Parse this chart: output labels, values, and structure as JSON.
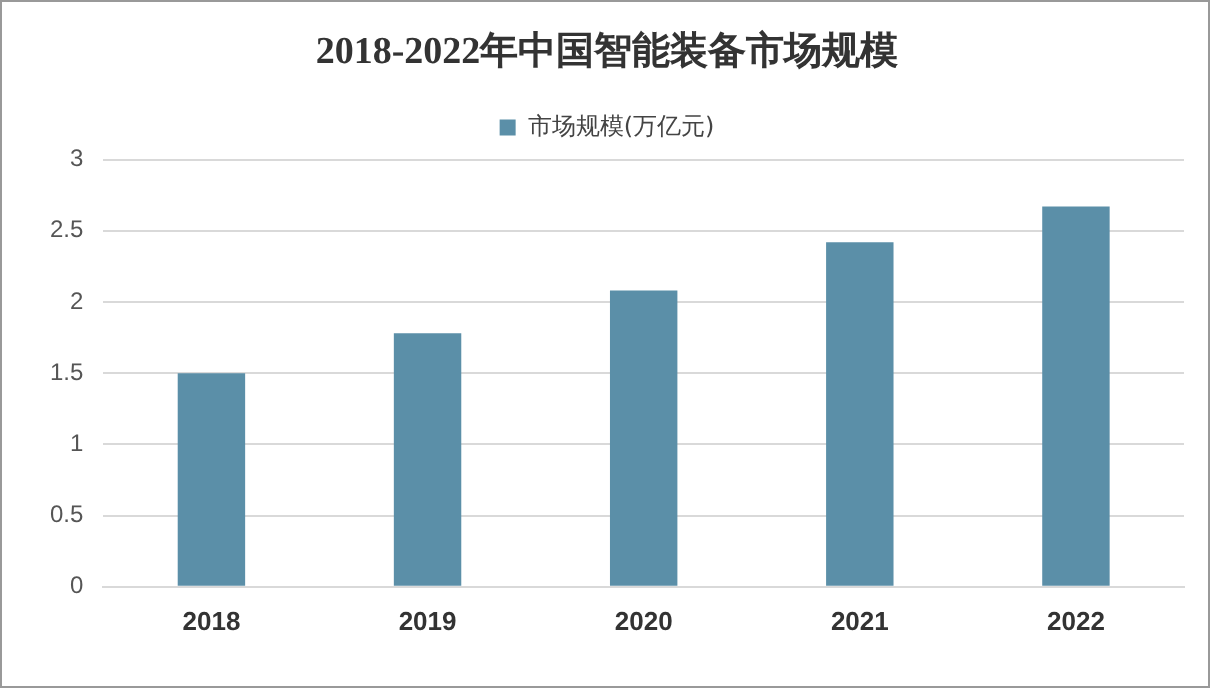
{
  "chart_data": {
    "type": "bar",
    "title": "2018-2022年中国智能装备市场规模",
    "categories": [
      "2018",
      "2019",
      "2020",
      "2021",
      "2022"
    ],
    "series": [
      {
        "name": "市场规模(万亿元)",
        "color": "#5b8fa8",
        "values": [
          1.5,
          1.78,
          2.08,
          2.42,
          2.67
        ]
      }
    ],
    "ylim": [
      0,
      3
    ],
    "yticks": [
      0,
      0.5,
      1,
      1.5,
      2,
      2.5,
      3
    ],
    "grid": "y",
    "legend": "top"
  }
}
